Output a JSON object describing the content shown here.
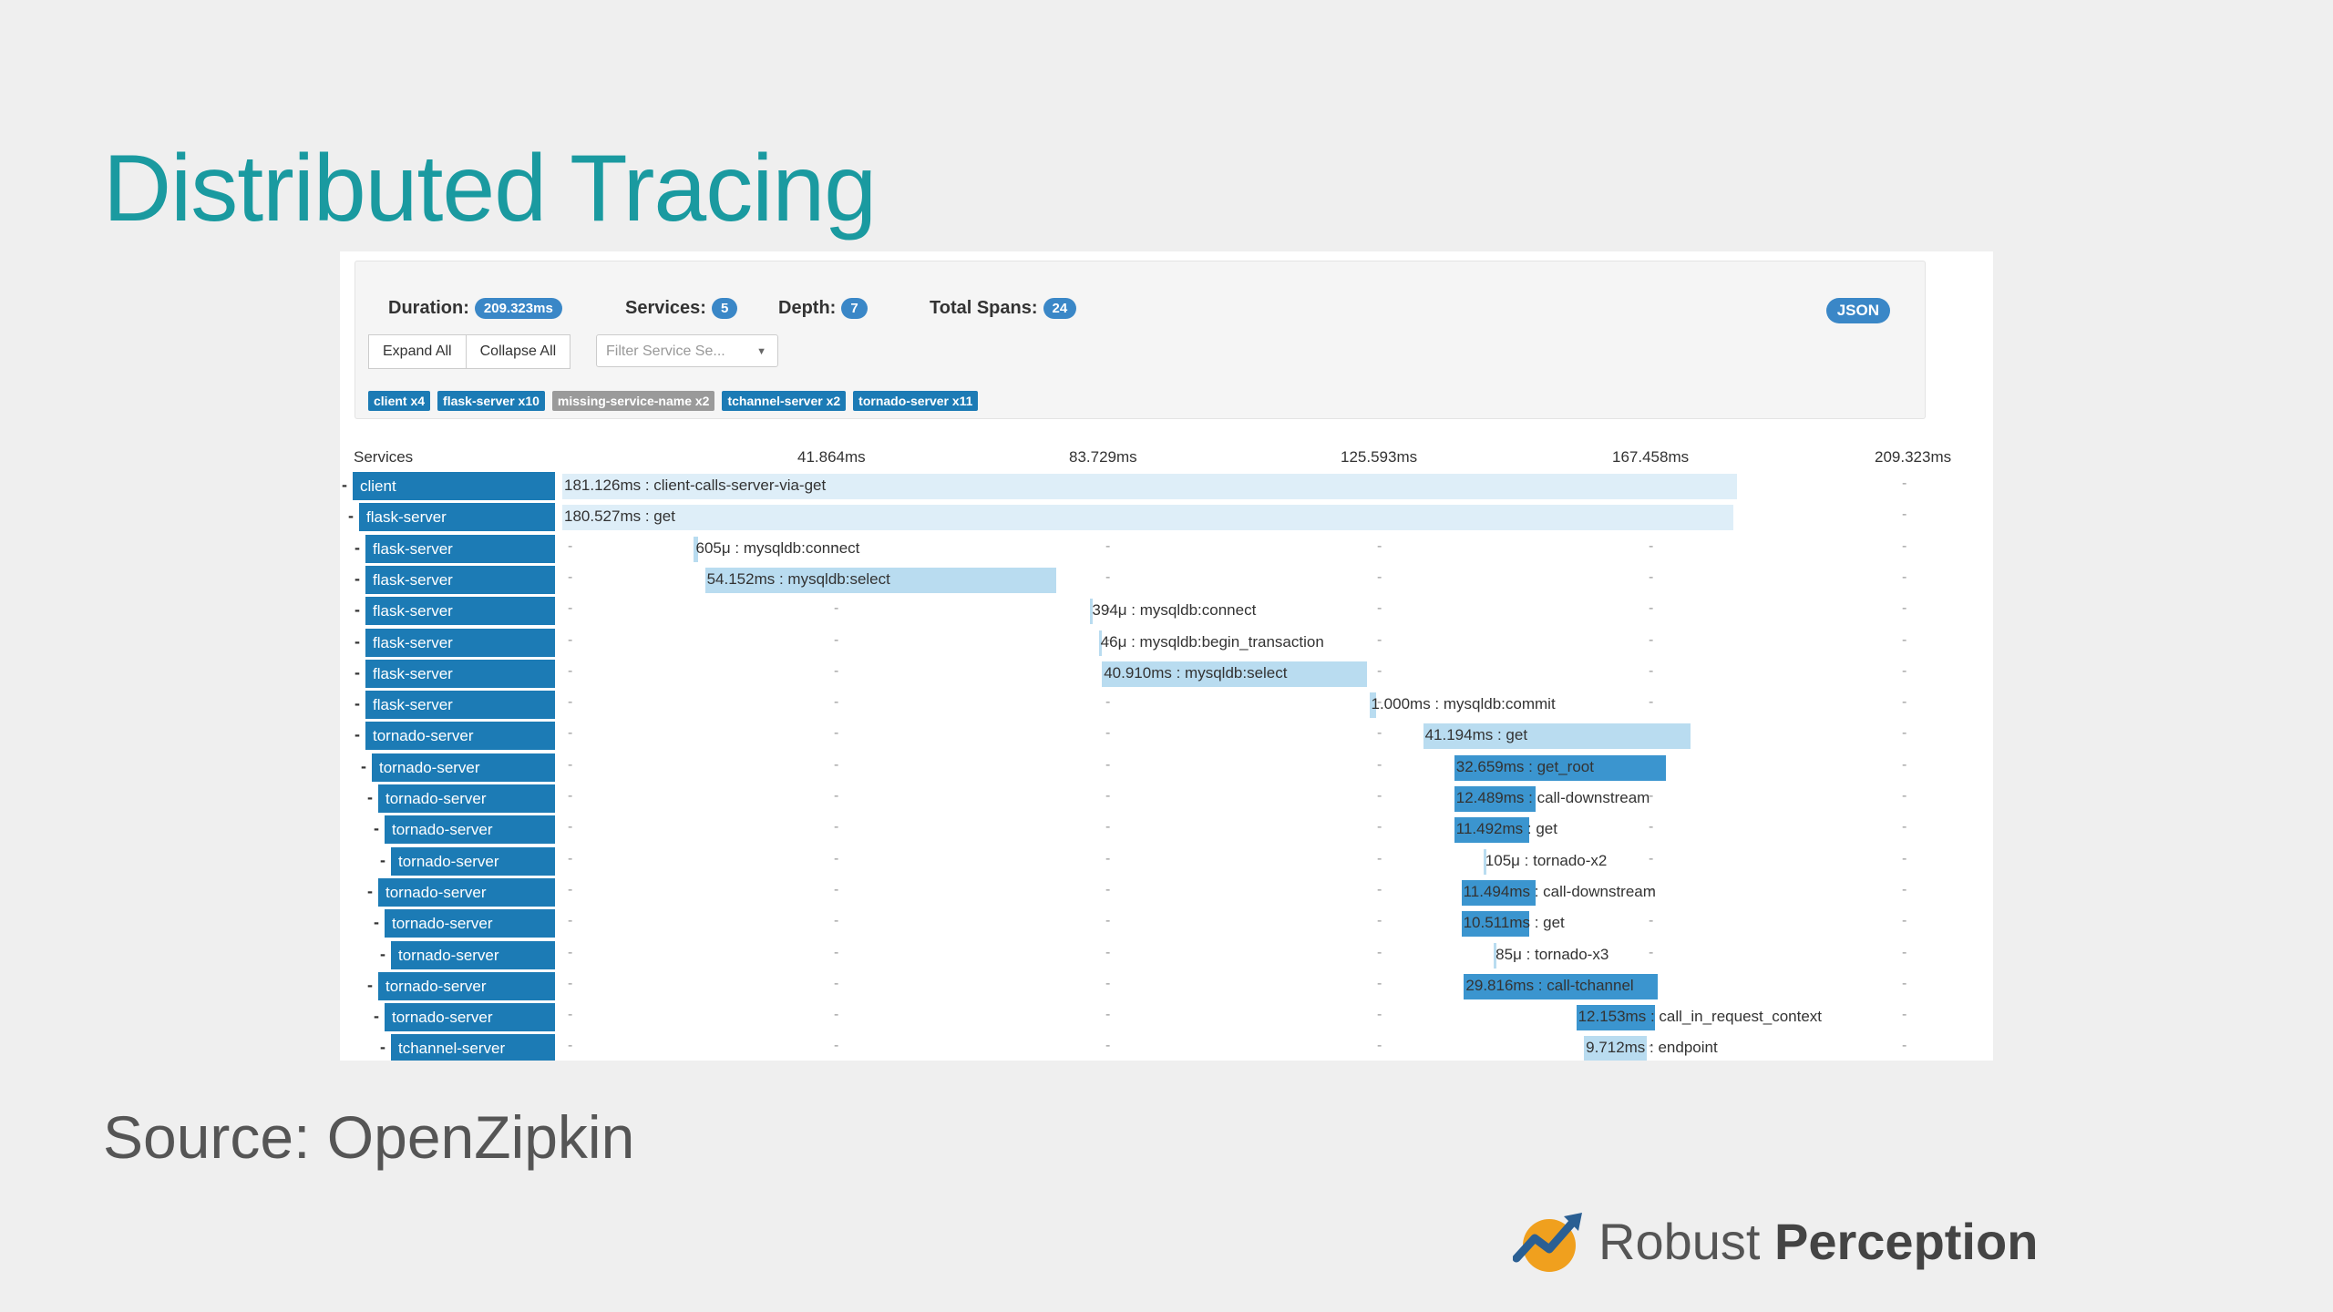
{
  "slide": {
    "title": "Distributed Tracing",
    "source": "Source: OpenZipkin",
    "brand_regular": "Robust",
    "brand_bold": "Perception"
  },
  "summary": {
    "duration_label": "Duration:",
    "duration_value": "209.323ms",
    "services_label": "Services:",
    "services_value": "5",
    "depth_label": "Depth:",
    "depth_value": "7",
    "spans_label": "Total Spans:",
    "spans_value": "24",
    "json_button": "JSON",
    "expand_all": "Expand All",
    "collapse_all": "Collapse All",
    "filter_placeholder": "Filter Service Se...",
    "chips": [
      {
        "label": "client x4",
        "style": "blue"
      },
      {
        "label": "flask-server x10",
        "style": "blue"
      },
      {
        "label": "missing-service-name x2",
        "style": "gray"
      },
      {
        "label": "tchannel-server x2",
        "style": "blue"
      },
      {
        "label": "tornado-server x11",
        "style": "blue"
      }
    ]
  },
  "timeline": {
    "services_header": "Services",
    "ticks": [
      "41.864ms",
      "83.729ms",
      "125.593ms",
      "167.458ms",
      "209.323ms"
    ],
    "total_ms": 209.323,
    "rows": [
      {
        "service": "client",
        "depth": 0,
        "start_ms": 0,
        "dur_ms": 181.126,
        "label": "181.126ms : client-calls-server-via-get",
        "style": "pale",
        "inside": true
      },
      {
        "service": "flask-server",
        "depth": 1,
        "start_ms": 0,
        "dur_ms": 180.527,
        "label": "180.527ms : get",
        "style": "pale",
        "inside": true
      },
      {
        "service": "flask-server",
        "depth": 2,
        "start_ms": 20.3,
        "dur_ms": 0.605,
        "label": "605μ : mysqldb:connect",
        "style": "light",
        "inside": false
      },
      {
        "service": "flask-server",
        "depth": 2,
        "start_ms": 22.0,
        "dur_ms": 54.152,
        "label": "54.152ms : mysqldb:select",
        "style": "light",
        "inside": true
      },
      {
        "service": "flask-server",
        "depth": 2,
        "start_ms": 81.4,
        "dur_ms": 0.394,
        "label": "394μ : mysqldb:connect",
        "style": "light",
        "inside": false
      },
      {
        "service": "flask-server",
        "depth": 2,
        "start_ms": 82.7,
        "dur_ms": 0.046,
        "label": "46μ : mysqldb:begin_transaction",
        "style": "light",
        "inside": false
      },
      {
        "service": "flask-server",
        "depth": 2,
        "start_ms": 83.2,
        "dur_ms": 40.91,
        "label": "40.910ms : mysqldb:select",
        "style": "light",
        "inside": true
      },
      {
        "service": "flask-server",
        "depth": 2,
        "start_ms": 124.4,
        "dur_ms": 1.0,
        "label": "1.000ms : mysqldb:commit",
        "style": "light",
        "inside": false
      },
      {
        "service": "tornado-server",
        "depth": 2,
        "start_ms": 132.7,
        "dur_ms": 41.194,
        "label": "41.194ms : get",
        "style": "light",
        "inside": true
      },
      {
        "service": "tornado-server",
        "depth": 3,
        "start_ms": 137.5,
        "dur_ms": 32.659,
        "label": "32.659ms : get_root",
        "style": "dark",
        "inside": true
      },
      {
        "service": "tornado-server",
        "depth": 4,
        "start_ms": 137.5,
        "dur_ms": 12.489,
        "label": "12.489ms : call-downstream",
        "style": "dark",
        "inside": true
      },
      {
        "service": "tornado-server",
        "depth": 5,
        "start_ms": 137.5,
        "dur_ms": 11.492,
        "label": "11.492ms : get",
        "style": "dark",
        "inside": true
      },
      {
        "service": "tornado-server",
        "depth": 6,
        "start_ms": 142.0,
        "dur_ms": 0.105,
        "label": "105μ : tornado-x2",
        "style": "light",
        "inside": false
      },
      {
        "service": "tornado-server",
        "depth": 4,
        "start_ms": 138.6,
        "dur_ms": 11.494,
        "label": "11.494ms : call-downstream",
        "style": "dark",
        "inside": true
      },
      {
        "service": "tornado-server",
        "depth": 5,
        "start_ms": 138.6,
        "dur_ms": 10.511,
        "label": "10.511ms : get",
        "style": "dark",
        "inside": true
      },
      {
        "service": "tornado-server",
        "depth": 6,
        "start_ms": 143.6,
        "dur_ms": 0.085,
        "label": "85μ : tornado-x3",
        "style": "light",
        "inside": false
      },
      {
        "service": "tornado-server",
        "depth": 4,
        "start_ms": 139.0,
        "dur_ms": 29.816,
        "label": "29.816ms : call-tchannel",
        "style": "dark",
        "inside": true
      },
      {
        "service": "tornado-server",
        "depth": 5,
        "start_ms": 156.3,
        "dur_ms": 12.153,
        "label": "12.153ms : call_in_request_context",
        "style": "dark",
        "inside": true
      },
      {
        "service": "tchannel-server",
        "depth": 6,
        "start_ms": 157.5,
        "dur_ms": 9.712,
        "label": "9.712ms : endpoint",
        "style": "light",
        "inside": true
      }
    ]
  },
  "colors": {
    "title": "#1a9aa0",
    "service_bar": "#1c7bb5",
    "badge": "#3a87c7",
    "span_light": "#b9dcf0",
    "span_dark": "#3b95cf"
  }
}
